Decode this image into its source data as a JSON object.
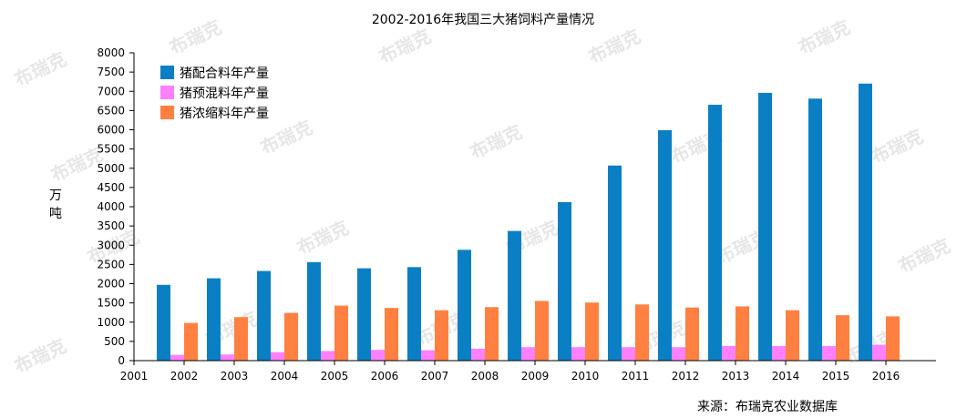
{
  "chart_data": {
    "type": "bar",
    "title": "2002-2016年我国三大猪饲料产量情况",
    "ylabel_lines": [
      "万",
      "吨"
    ],
    "x_ticks": [
      "2001",
      "2002",
      "2003",
      "2004",
      "2005",
      "2006",
      "2007",
      "2008",
      "2009",
      "2010",
      "2011",
      "2012",
      "2013",
      "2014",
      "2015",
      "2016"
    ],
    "categories": [
      "2002",
      "2003",
      "2004",
      "2005",
      "2006",
      "2007",
      "2008",
      "2009",
      "2010",
      "2011",
      "2012",
      "2013",
      "2014",
      "2015",
      "2016"
    ],
    "ylim": [
      0,
      8000
    ],
    "y_ticks": [
      0,
      500,
      1000,
      1500,
      2000,
      2500,
      3000,
      3500,
      4000,
      4500,
      5000,
      5500,
      6000,
      6500,
      7000,
      7500,
      8000
    ],
    "legend_position": "top-left",
    "grid": false,
    "series": [
      {
        "name": "猪配合料年产量",
        "color": "#0a7fc4",
        "values": [
          1970,
          2140,
          2330,
          2560,
          2400,
          2430,
          2880,
          3370,
          4120,
          5070,
          5990,
          6650,
          6960,
          6810,
          7200
        ]
      },
      {
        "name": "猪预混料年产量",
        "color": "#ff80ff",
        "values": [
          150,
          160,
          220,
          250,
          280,
          270,
          310,
          350,
          350,
          350,
          350,
          380,
          380,
          380,
          410
        ]
      },
      {
        "name": "猪浓缩料年产量",
        "color": "#ff8040",
        "values": [
          980,
          1130,
          1240,
          1430,
          1370,
          1310,
          1390,
          1550,
          1510,
          1460,
          1380,
          1410,
          1310,
          1180,
          1150
        ]
      }
    ]
  },
  "source_text": "来源：布瑞克农业数据库",
  "watermark_text": "布瑞克"
}
